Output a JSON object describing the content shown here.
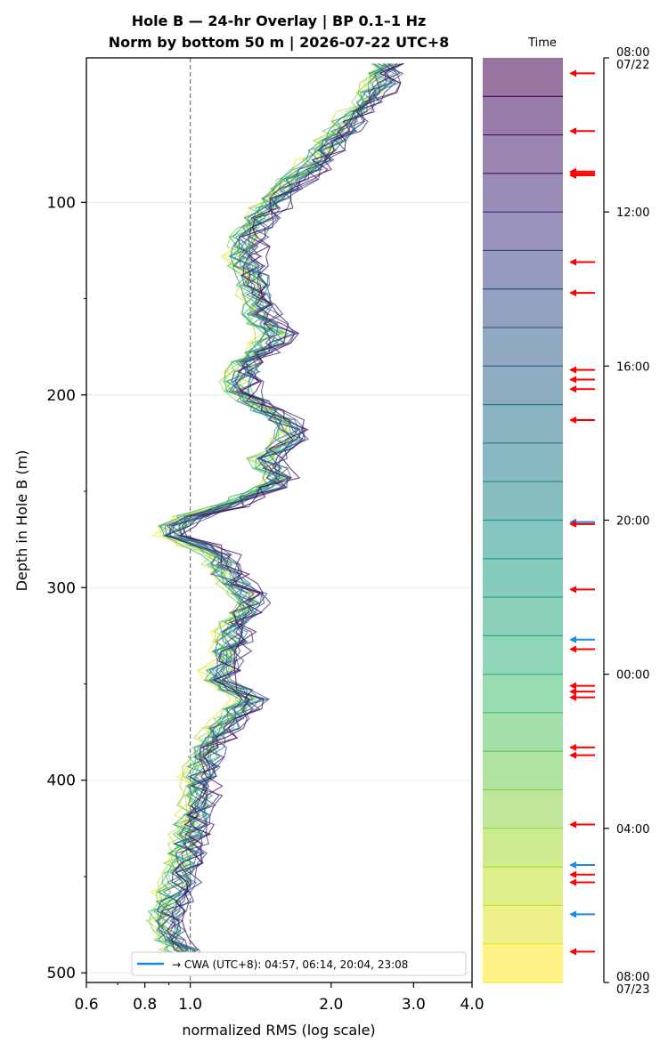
{
  "chart_data": {
    "type": "line",
    "title": "Hole B — 24-hr Overlay  |  BP 0.1–1 Hz",
    "subtitle": "Norm by bottom 50 m  |  2026-07-22 UTC+8",
    "xlabel": "normalized RMS  (log scale)",
    "ylabel": "Depth in Hole B (m)",
    "x_scale": "log",
    "xlim": [
      0.6,
      4.0
    ],
    "ylim": [
      505,
      25
    ],
    "x_ticks": [
      "0.6",
      "0.8",
      "1.0",
      "2.0",
      "3.0",
      "4.0"
    ],
    "y_ticks": [
      "100",
      "200",
      "300",
      "400",
      "500"
    ],
    "reference_line_x": 1.0,
    "grid": "horizontal",
    "depth_profile": [
      {
        "depth": 28,
        "x": 2.6
      },
      {
        "depth": 40,
        "x": 2.55
      },
      {
        "depth": 55,
        "x": 2.25
      },
      {
        "depth": 70,
        "x": 2.0
      },
      {
        "depth": 85,
        "x": 1.75
      },
      {
        "depth": 100,
        "x": 1.5
      },
      {
        "depth": 115,
        "x": 1.35
      },
      {
        "depth": 130,
        "x": 1.3
      },
      {
        "depth": 145,
        "x": 1.38
      },
      {
        "depth": 160,
        "x": 1.42
      },
      {
        "depth": 170,
        "x": 1.55
      },
      {
        "depth": 180,
        "x": 1.38
      },
      {
        "depth": 190,
        "x": 1.28
      },
      {
        "depth": 200,
        "x": 1.3
      },
      {
        "depth": 212,
        "x": 1.55
      },
      {
        "depth": 222,
        "x": 1.65
      },
      {
        "depth": 232,
        "x": 1.45
      },
      {
        "depth": 245,
        "x": 1.55
      },
      {
        "depth": 258,
        "x": 1.2
      },
      {
        "depth": 265,
        "x": 0.95
      },
      {
        "depth": 272,
        "x": 0.9
      },
      {
        "depth": 282,
        "x": 1.15
      },
      {
        "depth": 295,
        "x": 1.2
      },
      {
        "depth": 305,
        "x": 1.35
      },
      {
        "depth": 320,
        "x": 1.25
      },
      {
        "depth": 335,
        "x": 1.2
      },
      {
        "depth": 348,
        "x": 1.15
      },
      {
        "depth": 358,
        "x": 1.35
      },
      {
        "depth": 370,
        "x": 1.2
      },
      {
        "depth": 382,
        "x": 1.1
      },
      {
        "depth": 395,
        "x": 1.05
      },
      {
        "depth": 410,
        "x": 1.05
      },
      {
        "depth": 425,
        "x": 1.0
      },
      {
        "depth": 438,
        "x": 0.98
      },
      {
        "depth": 452,
        "x": 0.95
      },
      {
        "depth": 465,
        "x": 0.9
      },
      {
        "depth": 475,
        "x": 0.88
      },
      {
        "depth": 485,
        "x": 0.93
      },
      {
        "depth": 495,
        "x": 1.0
      }
    ],
    "series_count": 24,
    "colormap": "viridis_r",
    "colorbar": {
      "label": "Time",
      "ticks": [
        {
          "label": "08:00",
          "sub": "07/22",
          "hours": 0
        },
        {
          "label": "12:00",
          "sub": "",
          "hours": 4
        },
        {
          "label": "16:00",
          "sub": "",
          "hours": 8
        },
        {
          "label": "20:00",
          "sub": "",
          "hours": 12
        },
        {
          "label": "00:00",
          "sub": "",
          "hours": 16
        },
        {
          "label": "04:00",
          "sub": "",
          "hours": 20
        },
        {
          "label": "08:00",
          "sub": "07/23",
          "hours": 24
        }
      ]
    },
    "event_markers": [
      {
        "hours": 0.4,
        "color": "#ff0000"
      },
      {
        "hours": 1.9,
        "color": "#ff0000"
      },
      {
        "hours": 2.95,
        "color": "#ff0000"
      },
      {
        "hours": 3.0,
        "color": "#ff0000"
      },
      {
        "hours": 3.05,
        "color": "#ff0000"
      },
      {
        "hours": 5.3,
        "color": "#ff0000"
      },
      {
        "hours": 6.1,
        "color": "#ff0000"
      },
      {
        "hours": 8.1,
        "color": "#ff0000"
      },
      {
        "hours": 8.35,
        "color": "#ff0000"
      },
      {
        "hours": 8.6,
        "color": "#ff0000"
      },
      {
        "hours": 9.4,
        "color": "#ff0000"
      },
      {
        "hours": 12.05,
        "color": "#1e88e5"
      },
      {
        "hours": 12.1,
        "color": "#ff0000"
      },
      {
        "hours": 13.8,
        "color": "#ff0000"
      },
      {
        "hours": 15.1,
        "color": "#1e88e5"
      },
      {
        "hours": 15.35,
        "color": "#ff0000"
      },
      {
        "hours": 16.3,
        "color": "#ff0000"
      },
      {
        "hours": 16.45,
        "color": "#ff0000"
      },
      {
        "hours": 16.6,
        "color": "#ff0000"
      },
      {
        "hours": 17.9,
        "color": "#ff0000"
      },
      {
        "hours": 18.1,
        "color": "#ff0000"
      },
      {
        "hours": 19.9,
        "color": "#ff0000"
      },
      {
        "hours": 20.95,
        "color": "#1e88e5"
      },
      {
        "hours": 21.2,
        "color": "#ff0000"
      },
      {
        "hours": 21.4,
        "color": "#ff0000"
      },
      {
        "hours": 22.23,
        "color": "#1e88e5"
      },
      {
        "hours": 23.2,
        "color": "#ff0000"
      }
    ],
    "legend": {
      "entry": "→ CWA (UTC+8): 04:57, 06:14, 20:04, 23:08",
      "color": "#1e88e5",
      "placement": "bottom-right"
    }
  }
}
